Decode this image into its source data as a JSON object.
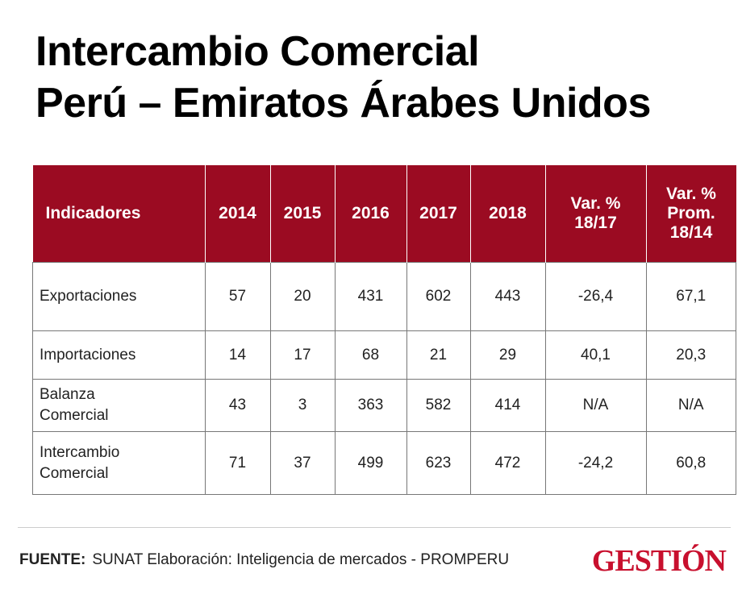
{
  "header": {
    "title": [
      "Intercambio Comercial",
      "Perú – Emiratos Árabes Unidos"
    ]
  },
  "table": {
    "columns": [
      [
        "Indicadores"
      ],
      [
        "2014"
      ],
      [
        "2015"
      ],
      [
        "2016"
      ],
      [
        "2017"
      ],
      [
        "2018"
      ],
      [
        "Var. %",
        "18/17"
      ],
      [
        "Var. %",
        "Prom.",
        "18/14"
      ]
    ],
    "rows": [
      [
        [
          "Exportaciones"
        ],
        "57",
        "20",
        "431",
        "602",
        "443",
        "-26,4",
        "67,1"
      ],
      [
        [
          "Importaciones"
        ],
        "14",
        "17",
        "68",
        "21",
        "29",
        "40,1",
        "20,3"
      ],
      [
        [
          "Balanza",
          "Comercial"
        ],
        "43",
        "3",
        "363",
        "582",
        "414",
        "N/A",
        "N/A"
      ],
      [
        [
          "Intercambio",
          "Comercial"
        ],
        "71",
        "37",
        "499",
        "623",
        "472",
        "-24,2",
        "60,8"
      ]
    ]
  },
  "footer": {
    "source_label": "FUENTE:",
    "source": "SUNAT Elaboración: Inteligencia de mercados - PROMPERU",
    "logo": "GESTIÓN"
  }
}
